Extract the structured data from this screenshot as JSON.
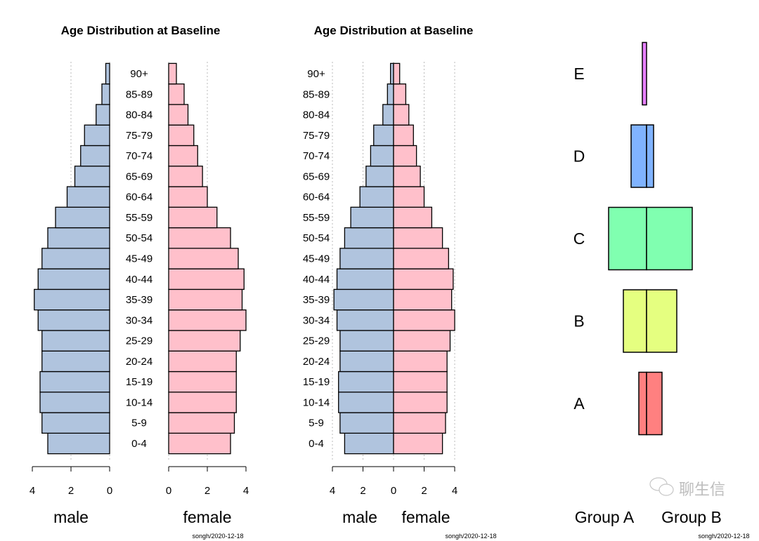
{
  "chart_data": [
    {
      "type": "bar",
      "orientation": "horizontal-pyramid",
      "title": "Age Distribution at Baseline",
      "categories": [
        "0-4",
        "5-9",
        "10-14",
        "15-19",
        "20-24",
        "25-29",
        "30-34",
        "35-39",
        "40-44",
        "45-49",
        "50-54",
        "55-59",
        "60-64",
        "65-69",
        "70-74",
        "75-79",
        "80-84",
        "85-89",
        "90+"
      ],
      "series": [
        {
          "name": "male",
          "color": "#b0c4de",
          "values": [
            3.2,
            3.5,
            3.6,
            3.6,
            3.5,
            3.5,
            3.7,
            3.9,
            3.7,
            3.5,
            3.2,
            2.8,
            2.2,
            1.8,
            1.5,
            1.3,
            0.7,
            0.4,
            0.2
          ]
        },
        {
          "name": "female",
          "color": "#ffc0cb",
          "values": [
            3.2,
            3.4,
            3.5,
            3.5,
            3.5,
            3.7,
            4.0,
            3.8,
            3.9,
            3.6,
            3.2,
            2.5,
            2.0,
            1.75,
            1.5,
            1.3,
            1.0,
            0.8,
            0.4
          ]
        }
      ],
      "xticks": [
        "4",
        "2",
        "0",
        "0",
        "2",
        "4"
      ],
      "xlim": [
        0,
        4
      ],
      "grid": "dotted vertical",
      "stamp": "songh/2020-12-18"
    },
    {
      "type": "bar",
      "orientation": "horizontal-pyramid",
      "title": "Age Distribution at Baseline",
      "categories": [
        "0-4",
        "5-9",
        "10-14",
        "15-19",
        "20-24",
        "25-29",
        "30-34",
        "35-39",
        "40-44",
        "45-49",
        "50-54",
        "55-59",
        "60-64",
        "65-69",
        "70-74",
        "75-79",
        "80-84",
        "85-89",
        "90+"
      ],
      "series": [
        {
          "name": "male",
          "color": "#b0c4de",
          "values": [
            3.2,
            3.5,
            3.6,
            3.6,
            3.5,
            3.5,
            3.7,
            3.9,
            3.7,
            3.5,
            3.2,
            2.8,
            2.2,
            1.8,
            1.5,
            1.3,
            0.7,
            0.4,
            0.2
          ]
        },
        {
          "name": "female",
          "color": "#ffc0cb",
          "values": [
            3.2,
            3.4,
            3.5,
            3.5,
            3.5,
            3.7,
            4.0,
            3.8,
            3.9,
            3.6,
            3.2,
            2.5,
            2.0,
            1.75,
            1.5,
            1.3,
            1.0,
            0.8,
            0.4
          ]
        }
      ],
      "xticks": [
        "4",
        "2",
        "0",
        "2",
        "4"
      ],
      "xlim": [
        -4,
        4
      ],
      "grid": "dotted vertical",
      "stamp": "songh/2020-12-18"
    },
    {
      "type": "bar",
      "orientation": "horizontal-pyramid",
      "categories": [
        "A",
        "B",
        "C",
        "D",
        "E"
      ],
      "colors": [
        "#ff8080",
        "#e5ff80",
        "#80ffb0",
        "#80b3ff",
        "#e680ff"
      ],
      "series": [
        {
          "name": "Group A",
          "values": [
            11,
            33,
            54,
            22,
            6
          ]
        },
        {
          "name": "Group B",
          "values": [
            22,
            43,
            65,
            10,
            0
          ]
        }
      ],
      "axes": "none",
      "stamp": "songh/2020-12-18"
    }
  ],
  "watermark": "聊生信"
}
